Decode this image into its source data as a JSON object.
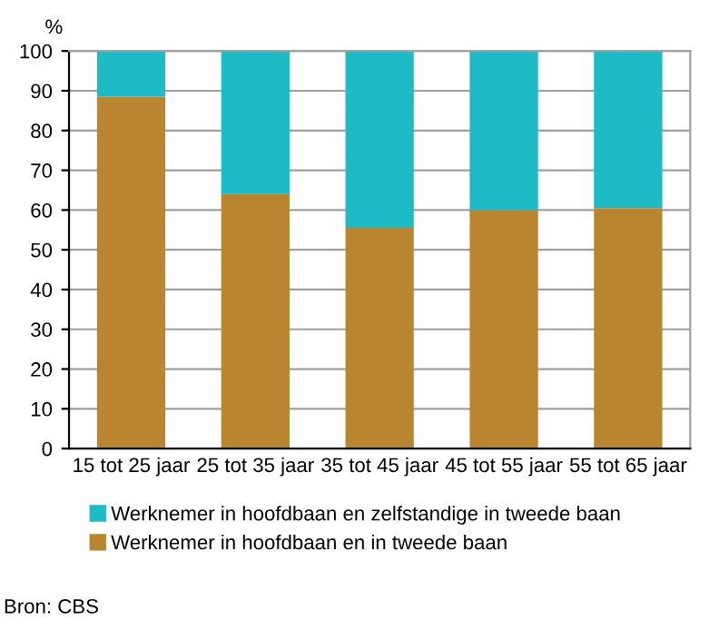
{
  "chart_data": {
    "type": "bar",
    "stacked": true,
    "ylabel": "%",
    "categories": [
      "15 tot 25 jaar",
      "25 tot 35 jaar",
      "35 tot 45 jaar",
      "45 tot 55 jaar",
      "55 tot 65 jaar"
    ],
    "series": [
      {
        "name": "Werknemer in hoofdbaan en in tweede baan",
        "color": "#b98530",
        "values": [
          88.5,
          64,
          55.5,
          60,
          60.5
        ]
      },
      {
        "name": "Werknemer in hoofdbaan en zelfstandige in tweede baan",
        "color": "#1ebbc6",
        "values": [
          11.5,
          36,
          44.5,
          40,
          39.5
        ]
      }
    ],
    "ylim": [
      0,
      100
    ],
    "yticks": [
      0,
      10,
      20,
      30,
      40,
      50,
      60,
      70,
      80,
      90,
      100
    ],
    "grid": "y",
    "legend": "bottom",
    "annotations": [
      "Bron: CBS"
    ]
  }
}
